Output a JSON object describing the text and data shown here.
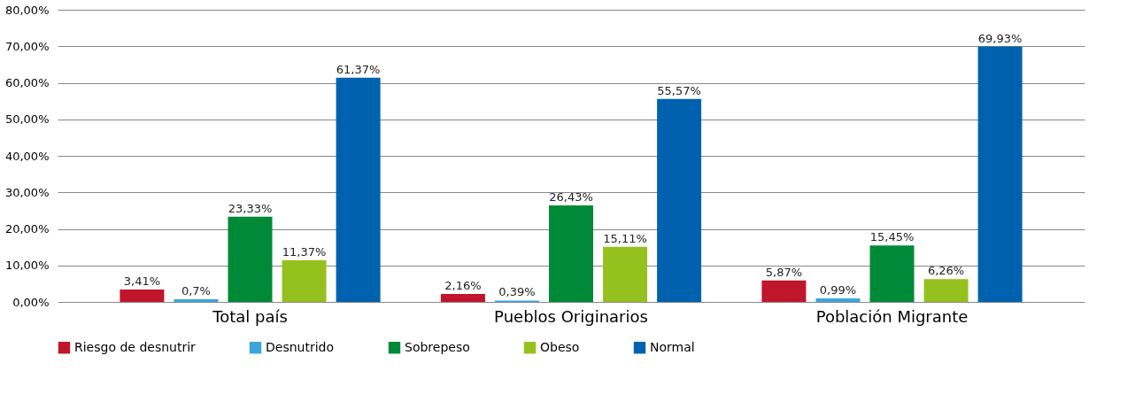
{
  "chart_data": {
    "type": "bar",
    "categories": [
      "Total país",
      "Pueblos Originarios",
      "Población Migrante"
    ],
    "series": [
      {
        "name": "Riesgo de desnutrir",
        "color": "#c0152a",
        "values": [
          3.41,
          2.16,
          5.87
        ],
        "value_labels": [
          "3,41%",
          "2,16%",
          "5,87%"
        ]
      },
      {
        "name": "Desnutrido",
        "color": "#3aa6dc",
        "values": [
          0.7,
          0.39,
          0.99
        ],
        "value_labels": [
          "0,7%",
          "0,39%",
          "0,99%"
        ]
      },
      {
        "name": "Sobrepeso",
        "color": "#008a37",
        "values": [
          23.33,
          26.43,
          15.45
        ],
        "value_labels": [
          "23,33%",
          "26,43%",
          "15,45%"
        ]
      },
      {
        "name": "Obeso",
        "color": "#95c11f",
        "values": [
          11.37,
          15.11,
          6.26
        ],
        "value_labels": [
          "11,37%",
          "15,11%",
          "6,26%"
        ]
      },
      {
        "name": "Normal",
        "color": "#0062ae",
        "values": [
          61.37,
          55.57,
          69.93
        ],
        "value_labels": [
          "61,37%",
          "55,57%",
          "69,93%"
        ]
      }
    ],
    "ylim": [
      0,
      80
    ],
    "yticks": [
      {
        "value": 0,
        "label": "0,00%"
      },
      {
        "value": 10,
        "label": "10,00%"
      },
      {
        "value": 20,
        "label": "20,00%"
      },
      {
        "value": 30,
        "label": "30,00%"
      },
      {
        "value": 40,
        "label": "40,00%"
      },
      {
        "value": 50,
        "label": "50,00%"
      },
      {
        "value": 60,
        "label": "60,00%"
      },
      {
        "value": 70,
        "label": "70,00%"
      },
      {
        "value": 80,
        "label": "80,00%"
      }
    ],
    "grid": "y",
    "legend": "bottom"
  }
}
